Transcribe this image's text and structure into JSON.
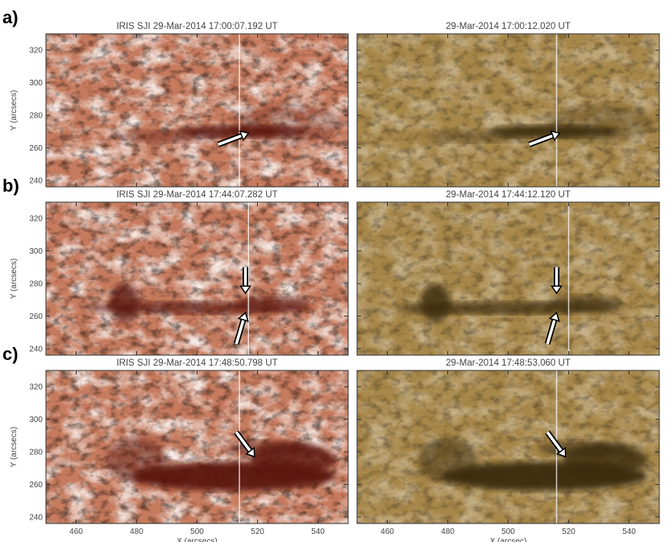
{
  "figure": {
    "rows": [
      {
        "label": "a)",
        "left_title": "IRIS SJI 29-Mar-2014 17:00:07.192 UT",
        "right_title": "29-Mar-2014 17:00:12.020 UT"
      },
      {
        "label": "b)",
        "left_title": "IRIS SJI 29-Mar-2014 17:44:07.282 UT",
        "right_title": "29-Mar-2014 17:44:12.120 UT"
      },
      {
        "label": "c)",
        "left_title": "IRIS SJI 29-Mar-2014 17:48:50.798 UT",
        "right_title": "29-Mar-2014 17:48:53.060 UT"
      }
    ],
    "y_label": "Y (arcsecs)",
    "x_label_left": "X (arcsecs)",
    "x_label_right": "X (arcsec)",
    "xlim": [
      450,
      550
    ],
    "ylim": [
      236,
      330
    ],
    "xticks": [
      460,
      480,
      500,
      520,
      540
    ],
    "yticks": [
      240,
      260,
      280,
      300,
      320
    ]
  }
}
